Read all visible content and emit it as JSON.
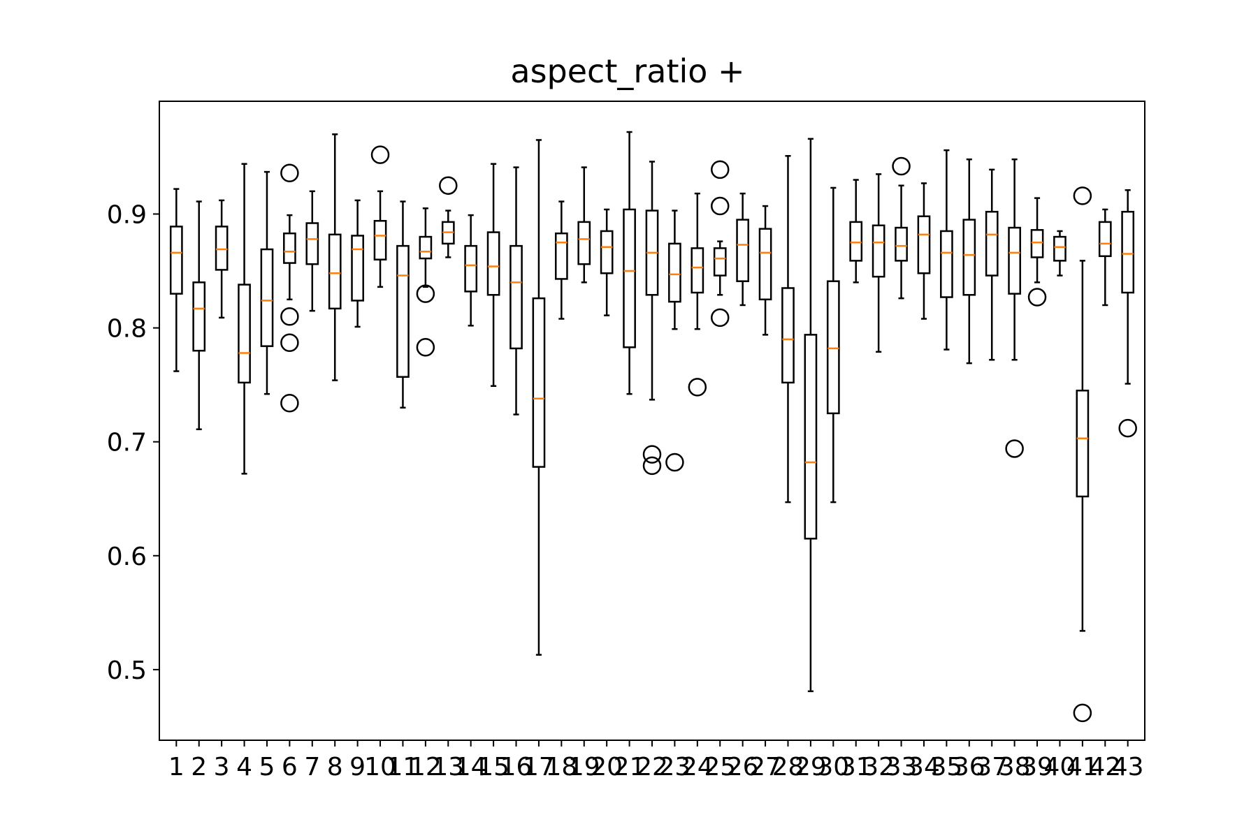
{
  "chart_data": {
    "type": "box",
    "title": "aspect_ratio +",
    "xlabel": "",
    "ylabel": "",
    "ylim": [
      0.438,
      0.999
    ],
    "yticks": [
      0.5,
      0.6,
      0.7,
      0.8,
      0.9
    ],
    "ytick_labels": [
      "0.5",
      "0.6",
      "0.7",
      "0.8",
      "0.9"
    ],
    "grid": false,
    "box_color": "#000000",
    "median_color": "#ff7f0e",
    "categories": [
      "1",
      "2",
      "3",
      "4",
      "5",
      "6",
      "7",
      "8",
      "9",
      "10",
      "11",
      "12",
      "13",
      "14",
      "15",
      "16",
      "17",
      "18",
      "19",
      "20",
      "21",
      "22",
      "23",
      "24",
      "25",
      "26",
      "27",
      "28",
      "29",
      "30",
      "31",
      "32",
      "33",
      "34",
      "35",
      "36",
      "37",
      "38",
      "39",
      "40",
      "41",
      "42",
      "43"
    ],
    "boxes": [
      {
        "whislo": 0.762,
        "q1": 0.83,
        "med": 0.866,
        "q3": 0.889,
        "whishi": 0.922,
        "fliers": []
      },
      {
        "whislo": 0.711,
        "q1": 0.78,
        "med": 0.817,
        "q3": 0.84,
        "whishi": 0.911,
        "fliers": []
      },
      {
        "whislo": 0.809,
        "q1": 0.851,
        "med": 0.869,
        "q3": 0.889,
        "whishi": 0.912,
        "fliers": []
      },
      {
        "whislo": 0.672,
        "q1": 0.752,
        "med": 0.778,
        "q3": 0.838,
        "whishi": 0.944,
        "fliers": []
      },
      {
        "whislo": 0.742,
        "q1": 0.784,
        "med": 0.824,
        "q3": 0.869,
        "whishi": 0.937,
        "fliers": []
      },
      {
        "whislo": 0.825,
        "q1": 0.857,
        "med": 0.867,
        "q3": 0.883,
        "whishi": 0.899,
        "fliers": [
          0.936,
          0.81,
          0.787,
          0.734
        ]
      },
      {
        "whislo": 0.815,
        "q1": 0.856,
        "med": 0.878,
        "q3": 0.892,
        "whishi": 0.92,
        "fliers": []
      },
      {
        "whislo": 0.754,
        "q1": 0.817,
        "med": 0.848,
        "q3": 0.882,
        "whishi": 0.97,
        "fliers": []
      },
      {
        "whislo": 0.801,
        "q1": 0.824,
        "med": 0.869,
        "q3": 0.881,
        "whishi": 0.912,
        "fliers": []
      },
      {
        "whislo": 0.836,
        "q1": 0.86,
        "med": 0.881,
        "q3": 0.894,
        "whishi": 0.92,
        "fliers": [
          0.952
        ]
      },
      {
        "whislo": 0.73,
        "q1": 0.757,
        "med": 0.846,
        "q3": 0.872,
        "whishi": 0.911,
        "fliers": []
      },
      {
        "whislo": 0.836,
        "q1": 0.861,
        "med": 0.867,
        "q3": 0.88,
        "whishi": 0.905,
        "fliers": [
          0.83,
          0.783
        ]
      },
      {
        "whislo": 0.862,
        "q1": 0.874,
        "med": 0.884,
        "q3": 0.893,
        "whishi": 0.903,
        "fliers": [
          0.925
        ]
      },
      {
        "whislo": 0.802,
        "q1": 0.832,
        "med": 0.855,
        "q3": 0.872,
        "whishi": 0.899,
        "fliers": []
      },
      {
        "whislo": 0.749,
        "q1": 0.829,
        "med": 0.854,
        "q3": 0.884,
        "whishi": 0.944,
        "fliers": []
      },
      {
        "whislo": 0.724,
        "q1": 0.782,
        "med": 0.84,
        "q3": 0.872,
        "whishi": 0.941,
        "fliers": []
      },
      {
        "whislo": 0.513,
        "q1": 0.678,
        "med": 0.738,
        "q3": 0.826,
        "whishi": 0.965,
        "fliers": []
      },
      {
        "whislo": 0.808,
        "q1": 0.843,
        "med": 0.875,
        "q3": 0.883,
        "whishi": 0.911,
        "fliers": []
      },
      {
        "whislo": 0.84,
        "q1": 0.856,
        "med": 0.878,
        "q3": 0.893,
        "whishi": 0.941,
        "fliers": []
      },
      {
        "whislo": 0.811,
        "q1": 0.848,
        "med": 0.871,
        "q3": 0.885,
        "whishi": 0.904,
        "fliers": []
      },
      {
        "whislo": 0.742,
        "q1": 0.783,
        "med": 0.85,
        "q3": 0.904,
        "whishi": 0.972,
        "fliers": []
      },
      {
        "whislo": 0.737,
        "q1": 0.829,
        "med": 0.866,
        "q3": 0.903,
        "whishi": 0.946,
        "fliers": [
          0.689,
          0.679
        ]
      },
      {
        "whislo": 0.799,
        "q1": 0.823,
        "med": 0.847,
        "q3": 0.874,
        "whishi": 0.903,
        "fliers": [
          0.682
        ]
      },
      {
        "whislo": 0.799,
        "q1": 0.831,
        "med": 0.853,
        "q3": 0.87,
        "whishi": 0.918,
        "fliers": [
          0.748
        ]
      },
      {
        "whislo": 0.829,
        "q1": 0.846,
        "med": 0.861,
        "q3": 0.87,
        "whishi": 0.876,
        "fliers": [
          0.939,
          0.907,
          0.809
        ]
      },
      {
        "whislo": 0.82,
        "q1": 0.841,
        "med": 0.873,
        "q3": 0.895,
        "whishi": 0.918,
        "fliers": []
      },
      {
        "whislo": 0.794,
        "q1": 0.825,
        "med": 0.866,
        "q3": 0.887,
        "whishi": 0.907,
        "fliers": []
      },
      {
        "whislo": 0.647,
        "q1": 0.752,
        "med": 0.79,
        "q3": 0.835,
        "whishi": 0.951,
        "fliers": []
      },
      {
        "whislo": 0.481,
        "q1": 0.615,
        "med": 0.682,
        "q3": 0.794,
        "whishi": 0.966,
        "fliers": []
      },
      {
        "whislo": 0.647,
        "q1": 0.725,
        "med": 0.782,
        "q3": 0.841,
        "whishi": 0.923,
        "fliers": []
      },
      {
        "whislo": 0.84,
        "q1": 0.859,
        "med": 0.875,
        "q3": 0.893,
        "whishi": 0.93,
        "fliers": []
      },
      {
        "whislo": 0.779,
        "q1": 0.845,
        "med": 0.875,
        "q3": 0.89,
        "whishi": 0.935,
        "fliers": []
      },
      {
        "whislo": 0.826,
        "q1": 0.859,
        "med": 0.872,
        "q3": 0.888,
        "whishi": 0.925,
        "fliers": [
          0.942
        ]
      },
      {
        "whislo": 0.808,
        "q1": 0.848,
        "med": 0.882,
        "q3": 0.898,
        "whishi": 0.927,
        "fliers": []
      },
      {
        "whislo": 0.781,
        "q1": 0.827,
        "med": 0.866,
        "q3": 0.885,
        "whishi": 0.956,
        "fliers": []
      },
      {
        "whislo": 0.769,
        "q1": 0.829,
        "med": 0.864,
        "q3": 0.895,
        "whishi": 0.948,
        "fliers": []
      },
      {
        "whislo": 0.772,
        "q1": 0.846,
        "med": 0.882,
        "q3": 0.902,
        "whishi": 0.939,
        "fliers": []
      },
      {
        "whislo": 0.772,
        "q1": 0.83,
        "med": 0.866,
        "q3": 0.888,
        "whishi": 0.948,
        "fliers": [
          0.694
        ]
      },
      {
        "whislo": 0.84,
        "q1": 0.862,
        "med": 0.875,
        "q3": 0.886,
        "whishi": 0.914,
        "fliers": [
          0.827
        ]
      },
      {
        "whislo": 0.846,
        "q1": 0.859,
        "med": 0.871,
        "q3": 0.88,
        "whishi": 0.885,
        "fliers": []
      },
      {
        "whislo": 0.534,
        "q1": 0.652,
        "med": 0.703,
        "q3": 0.745,
        "whishi": 0.859,
        "fliers": [
          0.916,
          0.462
        ]
      },
      {
        "whislo": 0.82,
        "q1": 0.863,
        "med": 0.874,
        "q3": 0.893,
        "whishi": 0.904,
        "fliers": []
      },
      {
        "whislo": 0.751,
        "q1": 0.831,
        "med": 0.865,
        "q3": 0.902,
        "whishi": 0.921,
        "fliers": [
          0.712
        ]
      }
    ]
  }
}
